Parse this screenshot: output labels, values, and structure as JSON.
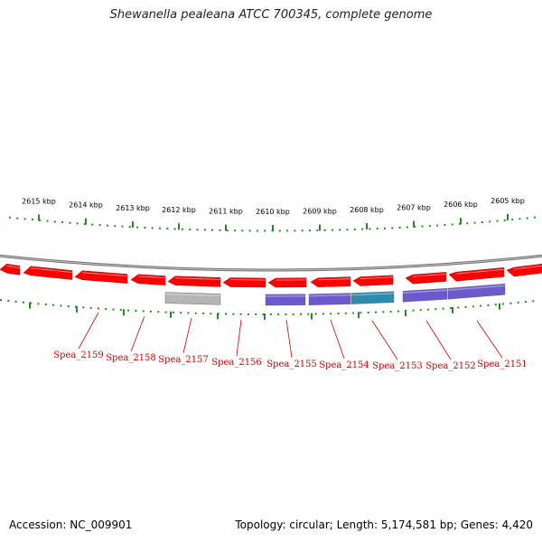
{
  "title": "Shewanella pealeana ATCC 700345, complete genome",
  "footer": {
    "accession": "Accession: NC_009901",
    "summary": "Topology: circular; Length: 5,174,581 bp; Genes: 4,420"
  },
  "colors": {
    "gene_forward": "#ff0000",
    "backbone": "#808080",
    "feature_grey": "#b5b5b5",
    "feature_purple": "#6a5acd",
    "feature_teal": "#2e8bb0",
    "tick_green": "#228b22",
    "label_red": "#cc0000"
  },
  "scale_labels": [
    "2615 kbp",
    "2614 kbp",
    "2613 kbp",
    "2612 kbp",
    "2611 kbp",
    "2610 kbp",
    "2609 kbp",
    "2608 kbp",
    "2607 kbp",
    "2606 kbp",
    "2605 kbp"
  ],
  "gene_labels": [
    "Spea_2159",
    "Spea_2158",
    "Spea_2157",
    "Spea_2156",
    "Spea_2155",
    "Spea_2154",
    "Spea_2153",
    "Spea_2152",
    "Spea_2151"
  ]
}
